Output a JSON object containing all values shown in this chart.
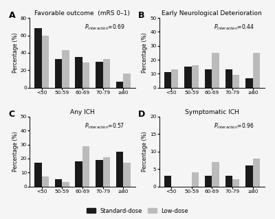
{
  "panels": [
    {
      "label": "A",
      "title": "Favorable outcome  (mRS 0–1)",
      "p_val": "0.69",
      "standard": [
        68,
        33,
        35,
        30,
        7
      ],
      "low": [
        60,
        43,
        29,
        33,
        16
      ],
      "ylim": [
        0,
        80
      ],
      "yticks": [
        0,
        20,
        40,
        60,
        80
      ]
    },
    {
      "label": "B",
      "title": "Early Neurological Deterioration",
      "p_val": "0.44",
      "standard": [
        11,
        15,
        13,
        13,
        7
      ],
      "low": [
        13,
        16,
        25,
        9,
        25
      ],
      "ylim": [
        0,
        50
      ],
      "yticks": [
        0,
        10,
        20,
        30,
        40,
        50
      ]
    },
    {
      "label": "C",
      "title": "Any ICH",
      "p_val": "0.57",
      "standard": [
        17,
        5,
        18,
        19,
        25
      ],
      "low": [
        7,
        3,
        29,
        21,
        17
      ],
      "ylim": [
        0,
        50
      ],
      "yticks": [
        0,
        10,
        20,
        30,
        40,
        50
      ]
    },
    {
      "label": "D",
      "title": "Symptomatic ICH",
      "p_val": "0.96",
      "standard": [
        3,
        0,
        3,
        3,
        6
      ],
      "low": [
        0,
        4,
        7,
        2,
        8
      ],
      "ylim": [
        0,
        20
      ],
      "yticks": [
        0,
        5,
        10,
        15,
        20
      ]
    }
  ],
  "categories": [
    "<50",
    "50-59",
    "60-69",
    "70-79",
    "≥80"
  ],
  "standard_color": "#1a1a1a",
  "low_color": "#bbbbbb",
  "ylabel": "Percentage (%)",
  "legend_standard": "Standard-dose",
  "legend_low": "Low-dose",
  "bar_width": 0.35,
  "background_color": "#f5f5f5"
}
